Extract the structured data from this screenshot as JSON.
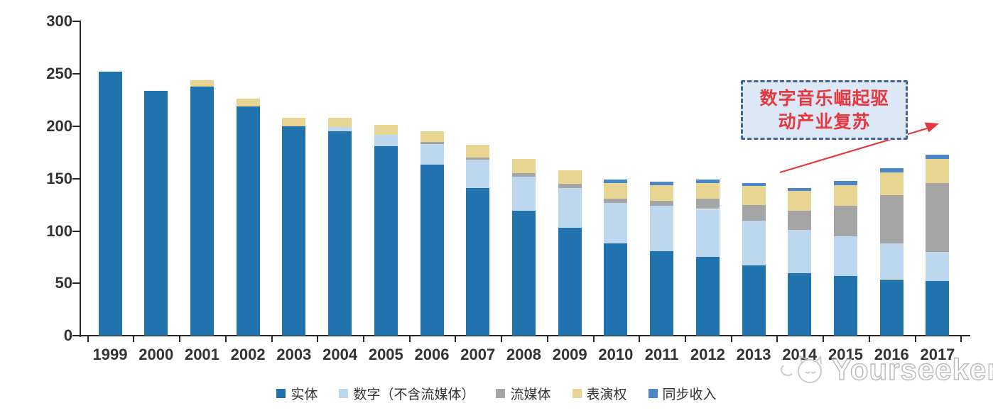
{
  "chart_data": {
    "type": "bar",
    "stacked": true,
    "title": "",
    "xlabel": "",
    "ylabel": "",
    "ylim": [
      0,
      300
    ],
    "yticks": [
      0,
      50,
      100,
      150,
      200,
      250,
      300
    ],
    "grid": false,
    "legend_position": "bottom",
    "categories": [
      "1999",
      "2000",
      "2001",
      "2002",
      "2003",
      "2004",
      "2005",
      "2006",
      "2007",
      "2008",
      "2009",
      "2010",
      "2011",
      "2012",
      "2013",
      "2014",
      "2015",
      "2016",
      "2017"
    ],
    "series": [
      {
        "name": "实体",
        "color": "#2173AE",
        "values": [
          252,
          234,
          238,
          219,
          200,
          195,
          181,
          163,
          141,
          119,
          103,
          88,
          81,
          75,
          67,
          60,
          57,
          54,
          52
        ]
      },
      {
        "name": "数字（不含流媒体）",
        "color": "#BDD7EE",
        "values": [
          0,
          0,
          0,
          0,
          0,
          4,
          11,
          20,
          27,
          33,
          38,
          39,
          43,
          46,
          43,
          41,
          38,
          34,
          28
        ]
      },
      {
        "name": "流媒体",
        "color": "#A5A5A5",
        "values": [
          0,
          0,
          0,
          0,
          0,
          0,
          0,
          2,
          2,
          3,
          4,
          4,
          5,
          10,
          15,
          18,
          29,
          46,
          66
        ]
      },
      {
        "name": "表演权",
        "color": "#E8D592",
        "values": [
          0,
          0,
          6,
          7,
          8,
          9,
          9,
          10,
          12,
          14,
          13,
          15,
          15,
          15,
          18,
          19,
          20,
          22,
          23
        ]
      },
      {
        "name": "同步收入",
        "color": "#4B87C8",
        "values": [
          0,
          0,
          0,
          0,
          0,
          0,
          0,
          0,
          0,
          0,
          0,
          3,
          3,
          3,
          3,
          3,
          4,
          4,
          4
        ]
      }
    ],
    "totals": [
      252,
      234,
      244,
      226,
      208,
      208,
      201,
      195,
      182,
      169,
      158,
      149,
      147,
      149,
      146,
      141,
      148,
      160,
      173
    ]
  },
  "annotation": {
    "line1": "数字音乐崛起驱",
    "line2": "动产业复苏",
    "box_fill": "#DCE8F5",
    "box_border": "#44639C",
    "text_color": "#E5383F",
    "arrow_color": "#E5383F"
  },
  "watermark": {
    "text": "Yourseeker"
  }
}
